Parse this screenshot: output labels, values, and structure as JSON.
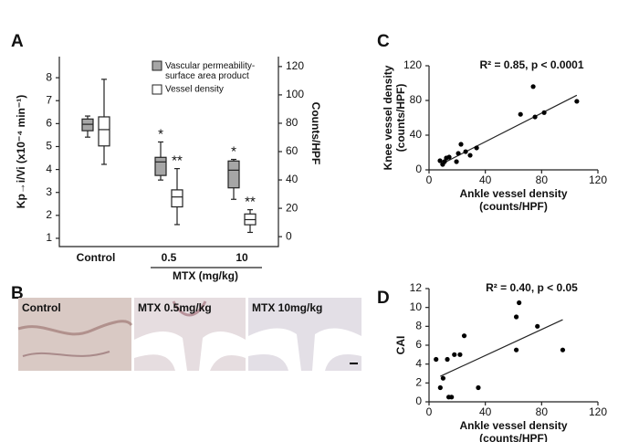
{
  "panel_labels": [
    "A",
    "B",
    "C",
    "D"
  ],
  "micrographs": [
    "Control",
    "MTX 0.5mg/kg",
    "MTX 10mg/kg"
  ],
  "chart_data": [
    {
      "type": "box",
      "categories": [
        "Control",
        "0.5",
        "10"
      ],
      "group_label": "MTX (mg/kg)",
      "ylabel": "Kp→i/Vi (x10⁻⁴ min⁻¹)",
      "y2label": "Counts/HPF",
      "ylim": [
        0.64,
        8.92
      ],
      "yticks": [
        1,
        2,
        3,
        4,
        5,
        6,
        7,
        8
      ],
      "y2lim": [
        -7,
        127
      ],
      "y2ticks": [
        0,
        20,
        40,
        60,
        80,
        100,
        120
      ],
      "series": [
        {
          "name": "Vascular permeability-surface area product",
          "color": "#a6a6a6",
          "axis": "y",
          "whisker_low": [
            5.41,
            3.54,
            2.7
          ],
          "q1": [
            5.69,
            3.74,
            3.2
          ],
          "median": [
            5.97,
            4.33,
            3.97
          ],
          "q3": [
            6.2,
            4.53,
            4.37
          ],
          "whisker_high": [
            6.33,
            5.2,
            4.44
          ],
          "significance": [
            null,
            "*",
            "*"
          ]
        },
        {
          "name": "Vessel density",
          "color": "#ffffff",
          "axis": "y2",
          "whisker_low": [
            51,
            8.5,
            3
          ],
          "q1": [
            64,
            21,
            8.4
          ],
          "median": [
            75.5,
            28,
            12
          ],
          "q3": [
            84.5,
            33,
            16
          ],
          "whisker_high": [
            111,
            48,
            19
          ],
          "significance": [
            null,
            "**",
            "**"
          ]
        }
      ]
    },
    {
      "type": "scatter",
      "annotation": "R² = 0.85, p < 0.0001",
      "xlabel": [
        "Ankle vessel density",
        "(counts/HPF)"
      ],
      "ylabel": [
        "Knee vessel density",
        "(counts/HPF)"
      ],
      "xlim": [
        0,
        120
      ],
      "xticks": [
        0,
        40,
        80,
        120
      ],
      "ylim": [
        0,
        120
      ],
      "yticks": [
        0,
        40,
        80,
        120
      ],
      "x": [
        7.8,
        9.7,
        11,
        12.3,
        14.3,
        19.5,
        20.8,
        22.7,
        26,
        29.2,
        33.8,
        65,
        74,
        75.3,
        81.8,
        105
      ],
      "y": [
        10.5,
        6.3,
        9.5,
        13.7,
        14.7,
        9.5,
        19,
        29.5,
        21,
        16.8,
        25.3,
        64,
        96,
        61,
        66,
        79
      ],
      "trendline": {
        "x": [
          8,
          105
        ],
        "y": [
          6,
          86
        ]
      }
    },
    {
      "type": "scatter",
      "annotation": "R² = 0.40, p < 0.05",
      "xlabel": [
        "Ankle vessel density",
        "(counts/HPF)"
      ],
      "ylabel": [
        "CAI"
      ],
      "xlim": [
        0,
        120
      ],
      "xticks": [
        0,
        40,
        80,
        120
      ],
      "ylim": [
        0,
        12
      ],
      "yticks": [
        0,
        2,
        4,
        6,
        8,
        10,
        12
      ],
      "x": [
        5,
        8,
        10,
        13,
        14,
        16,
        18,
        22,
        25,
        35,
        62,
        64,
        62,
        77,
        95
      ],
      "y": [
        4.5,
        1.5,
        2.5,
        4.5,
        0.5,
        0.5,
        5,
        5,
        7,
        1.5,
        9,
        10.5,
        5.5,
        8,
        5.5
      ],
      "trendline": {
        "x": [
          8,
          95
        ],
        "y": [
          2.7,
          8.7
        ]
      }
    }
  ]
}
